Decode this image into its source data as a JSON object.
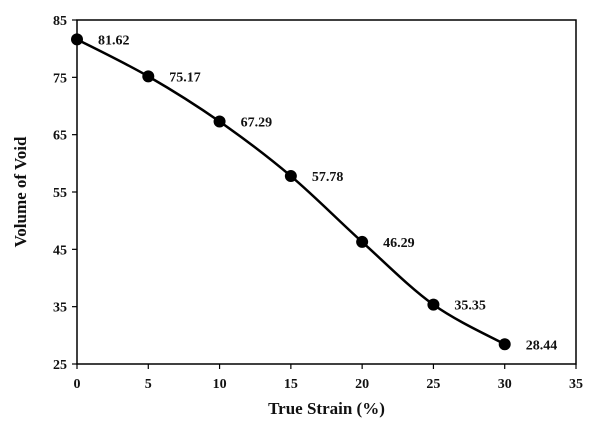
{
  "chart_data": {
    "type": "line",
    "title": "",
    "xlabel": "True Strain (%)",
    "ylabel": "Volume of Void",
    "xlim": [
      0,
      35
    ],
    "ylim": [
      25,
      85
    ],
    "xticks": [
      0,
      5,
      10,
      15,
      20,
      25,
      30,
      35
    ],
    "yticks": [
      25,
      35,
      45,
      55,
      65,
      75,
      85
    ],
    "grid": false,
    "legend": "none",
    "line_color": "#000000",
    "marker": "filled-circle",
    "smooth": true,
    "series": [
      {
        "x": [
          0,
          5,
          10,
          15,
          20,
          25,
          30
        ],
        "values": [
          81.62,
          75.17,
          67.29,
          57.78,
          46.29,
          35.35,
          28.44
        ],
        "data_labels": [
          "81.62",
          "75.17",
          "67.29",
          "57.78",
          "46.29",
          "35.35",
          "28.44"
        ]
      }
    ]
  }
}
